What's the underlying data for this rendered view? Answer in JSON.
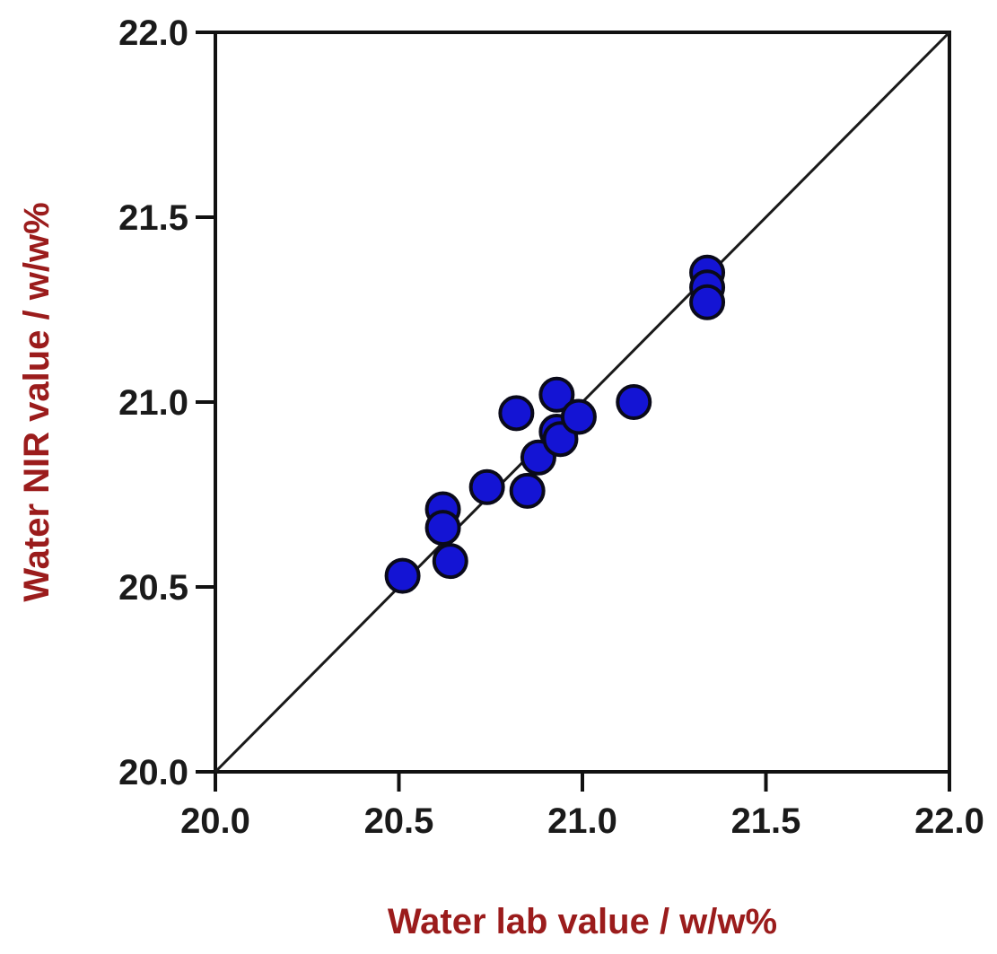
{
  "chart_data": {
    "type": "scatter",
    "title": "",
    "xlabel": "Water lab value / w/w%",
    "ylabel": "Water NIR value / w/w%",
    "xlim": [
      20.0,
      22.0
    ],
    "ylim": [
      20.0,
      22.0
    ],
    "x_ticks": [
      "20.0",
      "20.5",
      "21.0",
      "21.5",
      "22.0"
    ],
    "y_ticks": [
      "20.0",
      "20.5",
      "21.0",
      "21.5",
      "22.0"
    ],
    "grid": false,
    "legend": "none",
    "reference_line": {
      "from": [
        20.0,
        20.0
      ],
      "to": [
        22.0,
        22.0
      ],
      "color": "#1a1a1a"
    },
    "label_color": "#9b1c1c",
    "marker_fill": "#1414d4",
    "marker_stroke": "#0a0a1a",
    "series": [
      {
        "points": [
          [
            20.51,
            20.53
          ],
          [
            20.62,
            20.71
          ],
          [
            20.62,
            20.66
          ],
          [
            20.64,
            20.57
          ],
          [
            20.74,
            20.77
          ],
          [
            20.82,
            20.97
          ],
          [
            20.85,
            20.76
          ],
          [
            20.88,
            20.85
          ],
          [
            20.93,
            21.02
          ],
          [
            20.93,
            20.92
          ],
          [
            20.94,
            20.9
          ],
          [
            20.99,
            20.96
          ],
          [
            21.14,
            21.0
          ],
          [
            21.34,
            21.35
          ],
          [
            21.34,
            21.31
          ],
          [
            21.34,
            21.27
          ]
        ]
      }
    ]
  }
}
